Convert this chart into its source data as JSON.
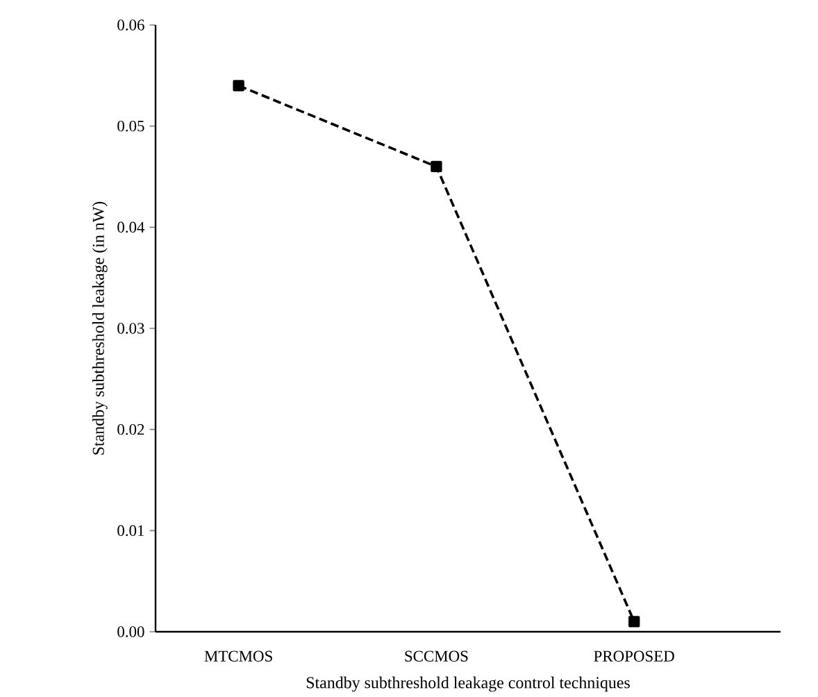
{
  "chart_data": {
    "type": "line",
    "xlabel": "Standby subthreshold leakage control techniques",
    "ylabel": "Standby subthreshold leakage (in nW)",
    "categories": [
      "MTCMOS",
      "SCCMOS",
      "PROPOSED"
    ],
    "series": [
      {
        "color": "#000000",
        "values": [
          0.054,
          0.046,
          0.001
        ]
      }
    ],
    "ylim": [
      0,
      0.06
    ],
    "yticks": [
      {
        "value": 0,
        "label": "0.00"
      },
      {
        "value": 0.01,
        "label": "0.01"
      },
      {
        "value": 0.02,
        "label": "0.02"
      },
      {
        "value": 0.03,
        "label": "0.03"
      },
      {
        "value": 0.04,
        "label": "0.04"
      },
      {
        "value": 0.05,
        "label": "0.05"
      },
      {
        "value": 0.06,
        "label": "0.06"
      }
    ],
    "marker": "square",
    "line_style": "dashed",
    "grid": false
  }
}
